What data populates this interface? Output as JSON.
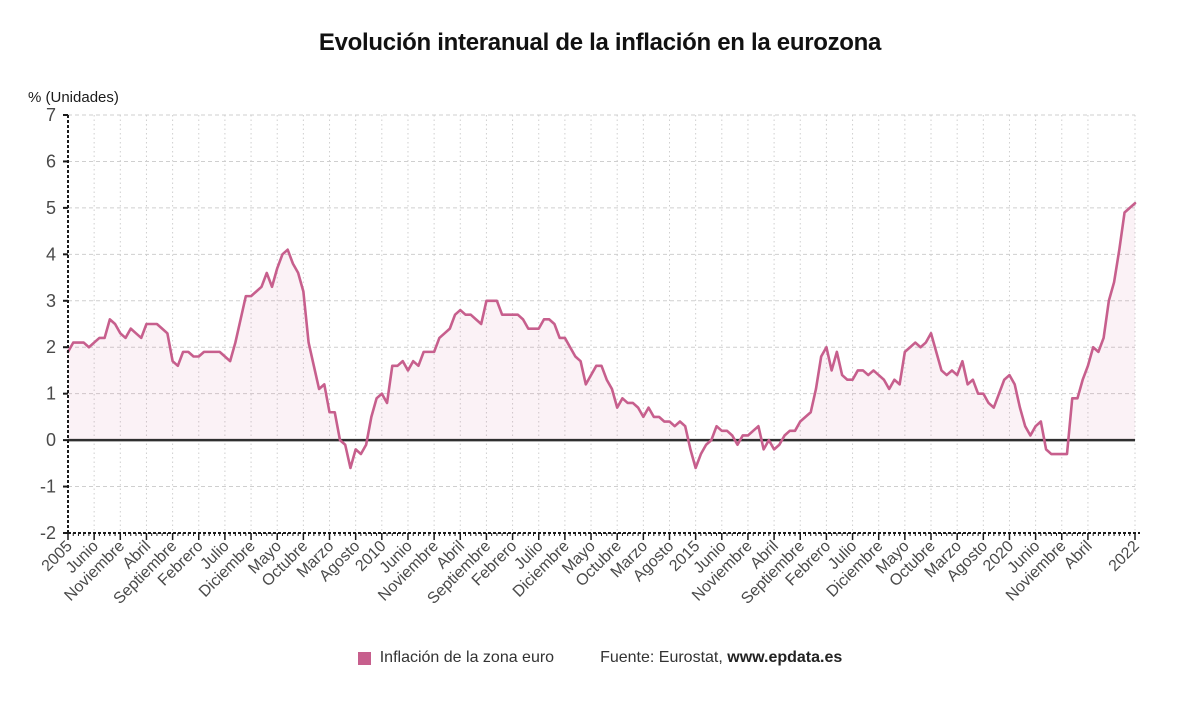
{
  "title": "Evolución interanual de la inflación en la eurozona",
  "y_axis_title": "% (Unidades)",
  "legend": {
    "label": "Inflación de la zona euro"
  },
  "source": {
    "prefix": "Fuente: Eurostat, ",
    "site": "www.epdata.es"
  },
  "colors": {
    "line": "#c75f8d",
    "fill": "#c75f8d",
    "fill_opacity": 0.08,
    "grid": "#cfcfcf",
    "zero_line": "#2f2f2f",
    "axis": "#1a1a1a",
    "tick_text": "#4a4a4a"
  },
  "chart_data": {
    "type": "area",
    "title": "Evolución interanual de la inflación en la eurozona",
    "ylabel": "% (Unidades)",
    "series_name": "Inflación de la zona euro",
    "frequency": "monthly",
    "start": "2005-01",
    "end": "2022-01",
    "ylim": [
      -2,
      7
    ],
    "y_ticks": [
      7,
      6,
      5,
      4,
      3,
      2,
      1,
      0,
      -1,
      -2
    ],
    "grid": true,
    "legend_position": "bottom",
    "x_ticks": [
      {
        "m": 0,
        "label": "2005"
      },
      {
        "m": 5,
        "label": "Junio"
      },
      {
        "m": 10,
        "label": "Noviembre"
      },
      {
        "m": 15,
        "label": "Abril"
      },
      {
        "m": 20,
        "label": "Septiembre"
      },
      {
        "m": 25,
        "label": "Febrero"
      },
      {
        "m": 30,
        "label": "Julio"
      },
      {
        "m": 35,
        "label": "Diciembre"
      },
      {
        "m": 40,
        "label": "Mayo"
      },
      {
        "m": 45,
        "label": "Octubre"
      },
      {
        "m": 50,
        "label": "Marzo"
      },
      {
        "m": 55,
        "label": "Agosto"
      },
      {
        "m": 60,
        "label": "2010"
      },
      {
        "m": 65,
        "label": "Junio"
      },
      {
        "m": 70,
        "label": "Noviembre"
      },
      {
        "m": 75,
        "label": "Abril"
      },
      {
        "m": 80,
        "label": "Septiembre"
      },
      {
        "m": 85,
        "label": "Febrero"
      },
      {
        "m": 90,
        "label": "Julio"
      },
      {
        "m": 95,
        "label": "Diciembre"
      },
      {
        "m": 100,
        "label": "Mayo"
      },
      {
        "m": 105,
        "label": "Octubre"
      },
      {
        "m": 110,
        "label": "Marzo"
      },
      {
        "m": 115,
        "label": "Agosto"
      },
      {
        "m": 120,
        "label": "2015"
      },
      {
        "m": 125,
        "label": "Junio"
      },
      {
        "m": 130,
        "label": "Noviembre"
      },
      {
        "m": 135,
        "label": "Abril"
      },
      {
        "m": 140,
        "label": "Septiembre"
      },
      {
        "m": 145,
        "label": "Febrero"
      },
      {
        "m": 150,
        "label": "Julio"
      },
      {
        "m": 155,
        "label": "Diciembre"
      },
      {
        "m": 160,
        "label": "Mayo"
      },
      {
        "m": 165,
        "label": "Octubre"
      },
      {
        "m": 170,
        "label": "Marzo"
      },
      {
        "m": 175,
        "label": "Agosto"
      },
      {
        "m": 180,
        "label": "2020"
      },
      {
        "m": 185,
        "label": "Junio"
      },
      {
        "m": 190,
        "label": "Noviembre"
      },
      {
        "m": 195,
        "label": "Abril"
      },
      {
        "m": 204,
        "label": "2022"
      }
    ],
    "values": [
      1.9,
      2.1,
      2.1,
      2.1,
      2.0,
      2.1,
      2.2,
      2.2,
      2.6,
      2.5,
      2.3,
      2.2,
      2.4,
      2.3,
      2.2,
      2.5,
      2.5,
      2.5,
      2.4,
      2.3,
      1.7,
      1.6,
      1.9,
      1.9,
      1.8,
      1.8,
      1.9,
      1.9,
      1.9,
      1.9,
      1.8,
      1.7,
      2.1,
      2.6,
      3.1,
      3.1,
      3.2,
      3.3,
      3.6,
      3.3,
      3.7,
      4.0,
      4.1,
      3.8,
      3.6,
      3.2,
      2.1,
      1.6,
      1.1,
      1.2,
      0.6,
      0.6,
      0.0,
      -0.1,
      -0.6,
      -0.2,
      -0.3,
      -0.1,
      0.5,
      0.9,
      1.0,
      0.8,
      1.6,
      1.6,
      1.7,
      1.5,
      1.7,
      1.6,
      1.9,
      1.9,
      1.9,
      2.2,
      2.3,
      2.4,
      2.7,
      2.8,
      2.7,
      2.7,
      2.6,
      2.5,
      3.0,
      3.0,
      3.0,
      2.7,
      2.7,
      2.7,
      2.7,
      2.6,
      2.4,
      2.4,
      2.4,
      2.6,
      2.6,
      2.5,
      2.2,
      2.2,
      2.0,
      1.8,
      1.7,
      1.2,
      1.4,
      1.6,
      1.6,
      1.3,
      1.1,
      0.7,
      0.9,
      0.8,
      0.8,
      0.7,
      0.5,
      0.7,
      0.5,
      0.5,
      0.4,
      0.4,
      0.3,
      0.4,
      0.3,
      -0.2,
      -0.6,
      -0.3,
      -0.1,
      0.0,
      0.3,
      0.2,
      0.2,
      0.1,
      -0.1,
      0.1,
      0.1,
      0.2,
      0.3,
      -0.2,
      0.0,
      -0.2,
      -0.1,
      0.1,
      0.2,
      0.2,
      0.4,
      0.5,
      0.6,
      1.1,
      1.8,
      2.0,
      1.5,
      1.9,
      1.4,
      1.3,
      1.3,
      1.5,
      1.5,
      1.4,
      1.5,
      1.4,
      1.3,
      1.1,
      1.3,
      1.2,
      1.9,
      2.0,
      2.1,
      2.0,
      2.1,
      2.3,
      1.9,
      1.5,
      1.4,
      1.5,
      1.4,
      1.7,
      1.2,
      1.3,
      1.0,
      1.0,
      0.8,
      0.7,
      1.0,
      1.3,
      1.4,
      1.2,
      0.7,
      0.3,
      0.1,
      0.3,
      0.4,
      -0.2,
      -0.3,
      -0.3,
      -0.3,
      -0.3,
      0.9,
      0.9,
      1.3,
      1.6,
      2.0,
      1.9,
      2.2,
      3.0,
      3.4,
      4.1,
      4.9,
      5.0,
      5.1
    ]
  }
}
